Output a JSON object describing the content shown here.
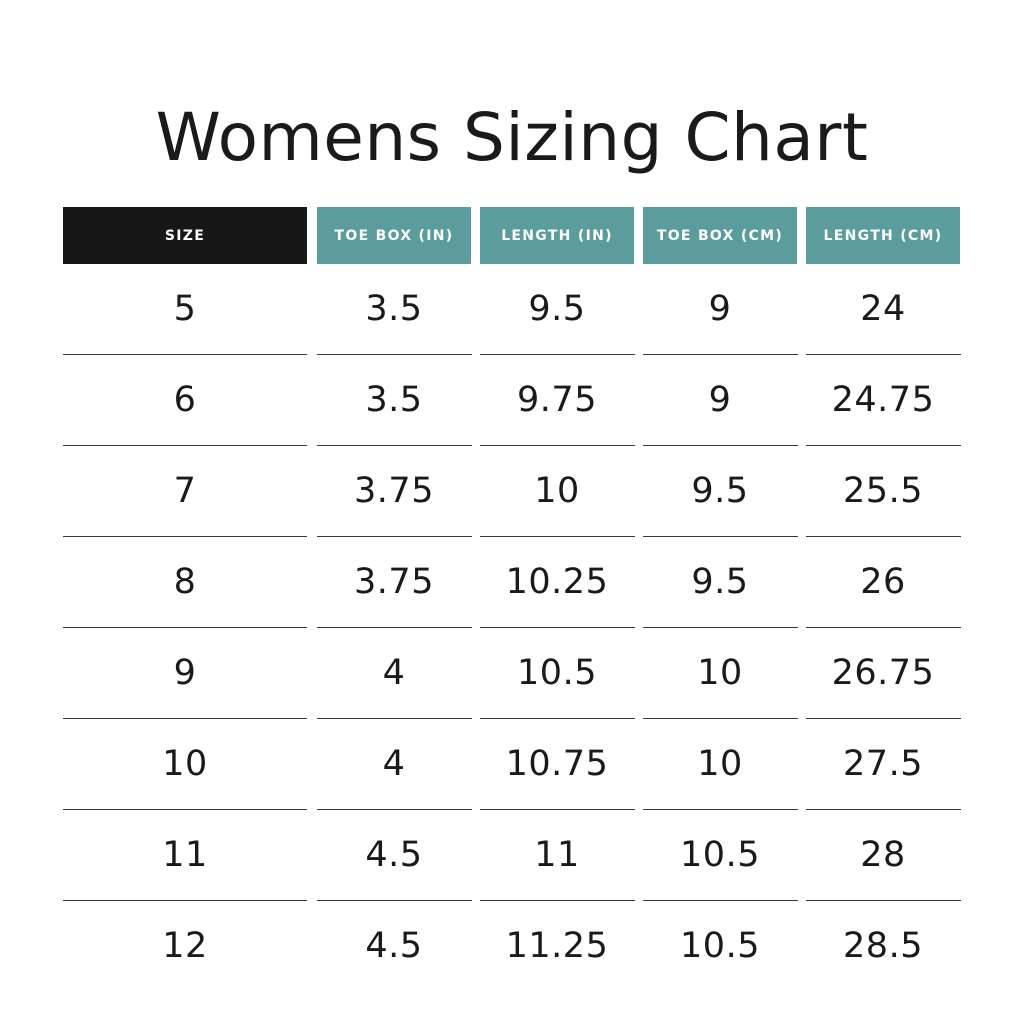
{
  "title": "Womens Sizing Chart",
  "colors": {
    "size_header_bg": "#171717",
    "header_bg": "#5b9c9c",
    "header_text": "#ffffff",
    "body_text": "#1a1a1a"
  },
  "table": {
    "headers": [
      "SIZE",
      "TOE BOX (IN)",
      "LENGTH (IN)",
      "TOE BOX (CM)",
      "LENGTH (CM)"
    ],
    "rows": [
      [
        "5",
        "3.5",
        "9.5",
        "9",
        "24"
      ],
      [
        "6",
        "3.5",
        "9.75",
        "9",
        "24.75"
      ],
      [
        "7",
        "3.75",
        "10",
        "9.5",
        "25.5"
      ],
      [
        "8",
        "3.75",
        "10.25",
        "9.5",
        "26"
      ],
      [
        "9",
        "4",
        "10.5",
        "10",
        "26.75"
      ],
      [
        "10",
        "4",
        "10.75",
        "10",
        "27.5"
      ],
      [
        "11",
        "4.5",
        "11",
        "10.5",
        "28"
      ],
      [
        "12",
        "4.5",
        "11.25",
        "10.5",
        "28.5"
      ]
    ]
  }
}
